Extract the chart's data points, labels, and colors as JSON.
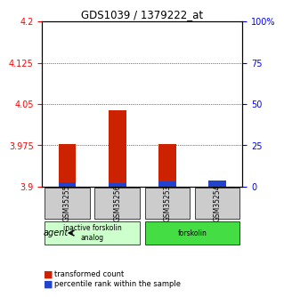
{
  "title": "GDS1039 / 1379222_at",
  "samples": [
    "GSM35255",
    "GSM35256",
    "GSM35253",
    "GSM35254"
  ],
  "red_values": [
    3.978,
    4.038,
    3.977,
    3.905
  ],
  "blue_values": [
    3.908,
    3.907,
    3.909,
    3.912
  ],
  "y_min": 3.9,
  "y_max": 4.2,
  "y_ticks": [
    3.9,
    3.975,
    4.05,
    4.125,
    4.2
  ],
  "y_tick_labels": [
    "3.9",
    "3.975",
    "4.05",
    "4.125",
    "4.2"
  ],
  "y2_ticks": [
    0,
    25,
    50,
    75,
    100
  ],
  "y2_tick_labels": [
    "0",
    "25",
    "50",
    "75",
    "100%"
  ],
  "groups": [
    {
      "label": "inactive forskolin\nanalog",
      "samples": [
        0,
        1
      ],
      "color": "#ccffcc"
    },
    {
      "label": "forskolin",
      "samples": [
        2,
        3
      ],
      "color": "#44dd44"
    }
  ],
  "bar_width": 0.35,
  "red_color": "#cc2200",
  "blue_color": "#2244cc",
  "background_color": "#ffffff",
  "grid_color": "#000000",
  "agent_label": "agent",
  "legend_red": "transformed count",
  "legend_blue": "percentile rank within the sample",
  "sample_box_color": "#cccccc",
  "sample_box_edge": "#000000"
}
